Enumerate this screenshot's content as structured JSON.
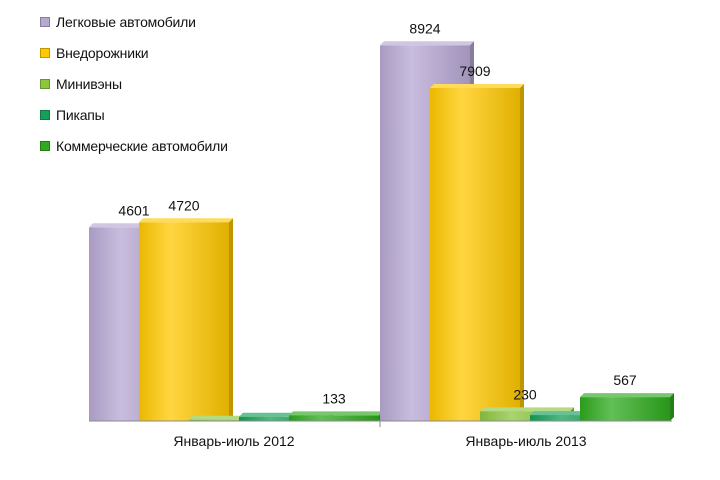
{
  "chart_data": {
    "type": "bar",
    "categories": [
      "Январь-июль 2012",
      "Январь-июль 2013"
    ],
    "series": [
      {
        "name": "Легковые автомобили",
        "color": "#B7A7D3",
        "values": [
          4601,
          8924
        ],
        "labels": [
          "4601",
          "8924"
        ]
      },
      {
        "name": "Внедорожники",
        "color": "#FFC800",
        "values": [
          4720,
          7909
        ],
        "labels": [
          "4720",
          "7909"
        ]
      },
      {
        "name": "Минивэны",
        "color": "#8CC63F",
        "values": [
          30,
          230
        ],
        "labels": [
          "",
          "230"
        ]
      },
      {
        "name": "Пикапы",
        "color": "#14A05A",
        "values": [
          100,
          140
        ],
        "labels": [
          "",
          ""
        ]
      },
      {
        "name": "Коммерческие автомобили",
        "color": "#2EAA1E",
        "values": [
          133,
          567
        ],
        "labels": [
          "133",
          "567"
        ]
      }
    ],
    "ylim": [
      0,
      10000
    ],
    "legend": "top-left",
    "grid": false,
    "xlabel": "",
    "ylabel": ""
  }
}
